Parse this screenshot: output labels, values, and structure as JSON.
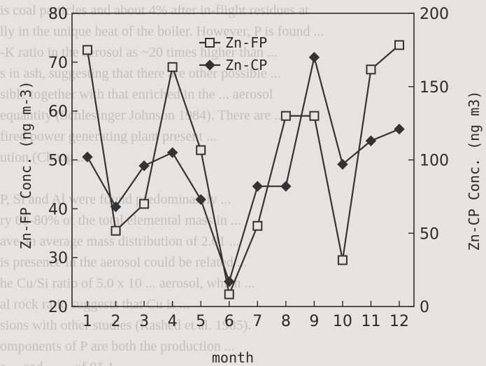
{
  "background_text": [
    "is coal particles and about 4% after in-flight residues at",
    "lly in the unique heat of the boiler. However, P is found ...",
    "-K ratio in the aerosol as ~20 times higher than ...",
    "s in ash, suggesting that there are other possible ...",
    "sible together with that enriched in the ... aerosol",
    "equantity (Schlesinger Johnson 1984). There are ...",
    "fired power generating plant present ...",
    "ution (Cheng ...",
    "",
    "P, Si and Al were found predominantly ...",
    "ry 60-80% of the total elemental mass in ...",
    "ave an average mass distribution of 2.01 ...",
    "is presence in the aerosol could be related ...",
    "he Cu/Si ratio of 5.0 x 10 ... aerosol, which ...",
    "al rock ratio suggests that Cu is ...",
    "sions with other studies (Rashed et al. 1985).",
    "omponents of P are both the production ...",
    "s ... and ...   ... of 01.1 ..."
  ],
  "chart_data": {
    "type": "line",
    "x": [
      1,
      2,
      3,
      4,
      5,
      6,
      7,
      8,
      9,
      10,
      11,
      12
    ],
    "xlabel": "month",
    "ylabel_left": "Zn-FP Conc. (ng m-3)",
    "ylabel_right": "Zn-CP Conc. (ng m3)",
    "ylim_left": [
      20,
      80
    ],
    "ylim_right": [
      0,
      200
    ],
    "yticks_left": [
      20,
      30,
      40,
      50,
      60,
      70,
      80
    ],
    "yticks_right": [
      0,
      50,
      100,
      150,
      200
    ],
    "xticks": [
      1,
      2,
      3,
      4,
      5,
      6,
      7,
      8,
      9,
      10,
      11,
      12
    ],
    "series": [
      {
        "name": "Zn-FP",
        "axis": "left",
        "marker": "open-square",
        "values": [
          72.5,
          35.5,
          41.0,
          69.0,
          52.0,
          22.5,
          36.5,
          59.0,
          59.0,
          29.5,
          68.5,
          73.5
        ]
      },
      {
        "name": "Zn-CP",
        "axis": "right",
        "marker": "filled-diamond",
        "values": [
          102,
          68,
          96,
          105,
          73,
          17,
          82,
          82,
          170,
          97,
          113,
          121
        ]
      }
    ],
    "legend_position": "top-center",
    "grid": false
  }
}
